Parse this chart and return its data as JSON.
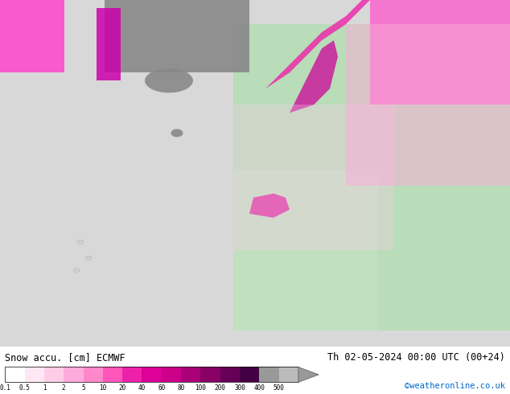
{
  "title_left": "Snow accu. [cm] ECMWF",
  "title_right": "Th 02-05-2024 00:00 UTC (00+24)",
  "credit": "©weatheronline.co.uk",
  "credit_color": "#0066cc",
  "bg_color": "#ffffff",
  "colorbar_colors": [
    "#ffffff",
    "#ffe8f4",
    "#ffcce8",
    "#ffaadc",
    "#ff88cc",
    "#ff55bb",
    "#ee22aa",
    "#dd0099",
    "#cc0088",
    "#aa0077",
    "#880066",
    "#660055",
    "#440044",
    "#999999",
    "#bbbbbb"
  ],
  "colorbar_labels": [
    "0.1",
    "0.5",
    "1",
    "2",
    "5",
    "10",
    "20",
    "40",
    "60",
    "80",
    "100",
    "200",
    "300",
    "400",
    "500"
  ],
  "map_ocean_color": "#d8d8d8",
  "map_land_color": "#c0e8c0",
  "map_snow_light": "#ffaadd",
  "map_snow_dark": "#880055"
}
